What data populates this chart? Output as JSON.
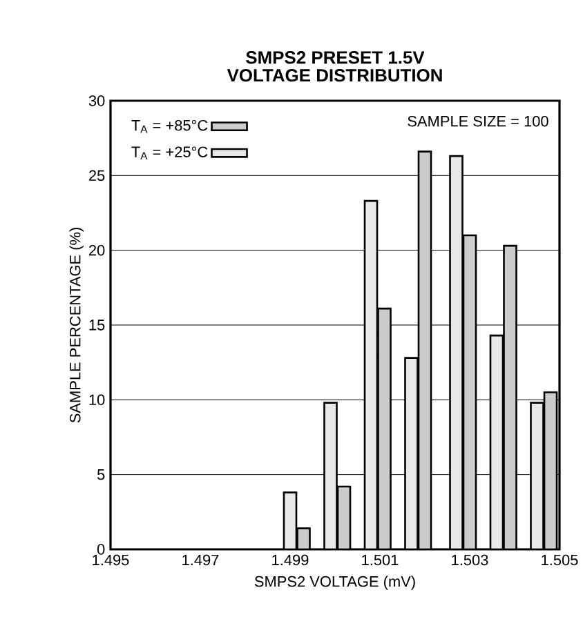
{
  "chart_data": {
    "type": "bar",
    "title": "SMPS2 PRESET 1.5V VOLTAGE DISTRIBUTION",
    "xlabel": "SMPS2 VOLTAGE (mV)",
    "ylabel": "SAMPLE PERCENTAGE (%)",
    "xlim": [
      1.495,
      1.505
    ],
    "xticks": [
      1.495,
      1.497,
      1.499,
      1.501,
      1.503,
      1.505
    ],
    "ylim": [
      0,
      30
    ],
    "yticks": [
      0,
      5,
      10,
      15,
      20,
      25,
      30
    ],
    "grid": "y",
    "legend": "top left",
    "annotations": [
      "SAMPLE SIZE = 100"
    ],
    "series": [
      {
        "name": "T$_{A}$ = +85°C",
        "color": "#cccccc",
        "x": [
          1.4993,
          1.5002,
          1.5011,
          1.502,
          1.503,
          1.5039,
          1.5048
        ],
        "values": [
          1.4,
          4.2,
          16.1,
          26.6,
          21.0,
          20.3,
          10.5
        ]
      },
      {
        "name": "T$_{A}$ = +25°C",
        "color": "#e8e8e8",
        "x": [
          1.499,
          1.4999,
          1.5008,
          1.5017,
          1.5027,
          1.5036,
          1.5045
        ],
        "values": [
          3.8,
          9.8,
          23.3,
          12.8,
          26.3,
          14.3,
          9.8
        ]
      }
    ]
  }
}
